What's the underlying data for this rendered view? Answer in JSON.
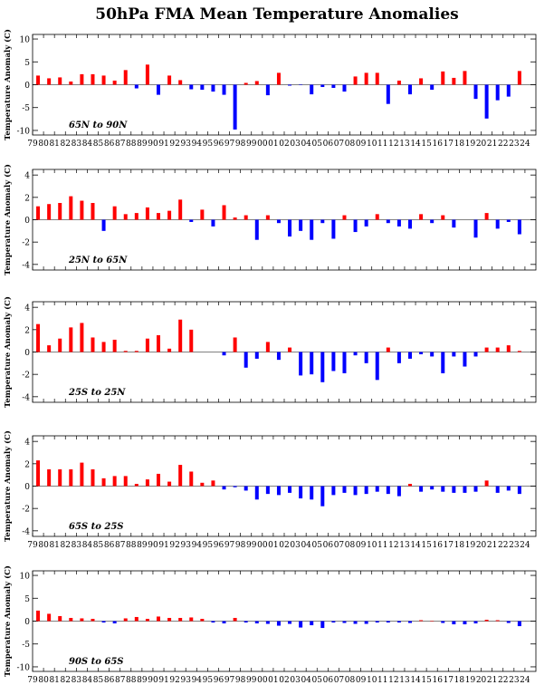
{
  "page": {
    "title": "50hPa FMA Mean Temperature Anomalies"
  },
  "colors": {
    "positive": "#ff0000",
    "negative": "#0000ff",
    "axis": "#000000"
  },
  "chart_data": [
    {
      "type": "bar",
      "region": "65N to 90N",
      "ylabel": "Temperature Anomaly (C)",
      "ylim": [
        -11,
        11
      ],
      "yticks": [
        -10,
        -5,
        0,
        5,
        10
      ],
      "categories": [
        "79",
        "80",
        "81",
        "82",
        "83",
        "84",
        "85",
        "86",
        "87",
        "88",
        "89",
        "90",
        "91",
        "92",
        "93",
        "94",
        "95",
        "96",
        "97",
        "98",
        "99",
        "00",
        "01",
        "02",
        "03",
        "04",
        "05",
        "06",
        "07",
        "08",
        "09",
        "10",
        "11",
        "12",
        "13",
        "14",
        "15",
        "16",
        "17",
        "18",
        "19",
        "20",
        "21",
        "22",
        "23",
        "24"
      ],
      "values": [
        2.0,
        1.4,
        1.6,
        0.7,
        2.3,
        2.3,
        2.0,
        0.9,
        3.2,
        -0.8,
        4.4,
        -2.2,
        2.0,
        1.0,
        -1.0,
        -1.1,
        -1.5,
        -2.2,
        -9.8,
        0.4,
        0.8,
        -2.3,
        2.6,
        -0.2,
        -0.1,
        -2.1,
        -0.5,
        -0.7,
        -1.5,
        1.8,
        2.6,
        2.6,
        -4.2,
        0.9,
        -2.1,
        1.4,
        -1.1,
        2.9,
        1.5,
        3.0,
        -3.1,
        -7.4,
        -3.4,
        -2.6,
        3.0,
        null
      ]
    },
    {
      "type": "bar",
      "region": "25N to 65N",
      "ylabel": "Temperature Anomaly (C)",
      "ylim": [
        -4.5,
        4.5
      ],
      "yticks": [
        -4,
        -2,
        0,
        2,
        4
      ],
      "categories": [
        "79",
        "80",
        "81",
        "82",
        "83",
        "84",
        "85",
        "86",
        "87",
        "88",
        "89",
        "90",
        "91",
        "92",
        "93",
        "94",
        "95",
        "96",
        "97",
        "98",
        "99",
        "00",
        "01",
        "02",
        "03",
        "04",
        "05",
        "06",
        "07",
        "08",
        "09",
        "10",
        "11",
        "12",
        "13",
        "14",
        "15",
        "16",
        "17",
        "18",
        "19",
        "20",
        "21",
        "22",
        "23",
        "24"
      ],
      "values": [
        1.2,
        1.4,
        1.5,
        2.1,
        1.7,
        1.5,
        -1.0,
        1.2,
        0.5,
        0.6,
        1.1,
        0.6,
        0.8,
        1.8,
        -0.2,
        0.9,
        -0.6,
        1.3,
        0.2,
        0.4,
        -1.8,
        0.4,
        -0.3,
        -1.5,
        -1.0,
        -1.8,
        -0.3,
        -1.7,
        0.4,
        -1.1,
        -0.6,
        0.5,
        -0.3,
        -0.6,
        -0.8,
        0.5,
        -0.3,
        0.4,
        -0.7,
        0.0,
        -1.6,
        0.6,
        -0.8,
        -0.2,
        -1.3,
        null
      ]
    },
    {
      "type": "bar",
      "region": "25S to 25N",
      "ylabel": "Temperature Anomaly (C)",
      "ylim": [
        -4.5,
        4.5
      ],
      "yticks": [
        -4,
        -2,
        0,
        2,
        4
      ],
      "categories": [
        "79",
        "80",
        "81",
        "82",
        "83",
        "84",
        "85",
        "86",
        "87",
        "88",
        "89",
        "90",
        "91",
        "92",
        "93",
        "94",
        "95",
        "96",
        "97",
        "98",
        "99",
        "00",
        "01",
        "02",
        "03",
        "04",
        "05",
        "06",
        "07",
        "08",
        "09",
        "10",
        "11",
        "12",
        "13",
        "14",
        "15",
        "16",
        "17",
        "18",
        "19",
        "20",
        "21",
        "22",
        "23",
        "24"
      ],
      "values": [
        2.5,
        0.6,
        1.2,
        2.2,
        2.6,
        1.3,
        0.9,
        1.1,
        0.1,
        0.1,
        1.2,
        1.5,
        0.3,
        2.9,
        2.0,
        null,
        null,
        -0.3,
        1.3,
        -1.4,
        -0.6,
        0.9,
        -0.7,
        0.4,
        -2.1,
        -2.0,
        -2.7,
        -1.7,
        -1.9,
        -0.3,
        -1.0,
        -2.5,
        0.4,
        -1.0,
        -0.6,
        -0.2,
        -0.4,
        -1.9,
        -0.4,
        -1.3,
        -0.4,
        0.4,
        0.4,
        0.6,
        0.1,
        null
      ]
    },
    {
      "type": "bar",
      "region": "65S to 25S",
      "ylabel": "Temperature Anomaly (C)",
      "ylim": [
        -4.5,
        4.5
      ],
      "yticks": [
        -4,
        -2,
        0,
        2,
        4
      ],
      "categories": [
        "79",
        "80",
        "81",
        "82",
        "83",
        "84",
        "85",
        "86",
        "87",
        "88",
        "89",
        "90",
        "91",
        "92",
        "93",
        "94",
        "95",
        "96",
        "97",
        "98",
        "99",
        "00",
        "01",
        "02",
        "03",
        "04",
        "05",
        "06",
        "07",
        "08",
        "09",
        "10",
        "11",
        "12",
        "13",
        "14",
        "15",
        "16",
        "17",
        "18",
        "19",
        "20",
        "21",
        "22",
        "23",
        "24"
      ],
      "values": [
        2.3,
        1.5,
        1.5,
        1.5,
        2.1,
        1.5,
        0.7,
        0.9,
        0.9,
        0.2,
        0.6,
        1.1,
        0.4,
        1.9,
        1.3,
        0.3,
        0.5,
        -0.3,
        -0.1,
        -0.4,
        -1.2,
        -0.7,
        -0.8,
        -0.6,
        -1.1,
        -1.2,
        -1.8,
        -0.8,
        -0.6,
        -0.8,
        -0.7,
        -0.5,
        -0.7,
        -0.9,
        0.2,
        -0.5,
        -0.3,
        -0.5,
        -0.6,
        -0.6,
        -0.5,
        0.5,
        -0.6,
        -0.4,
        -0.7,
        null
      ]
    },
    {
      "type": "bar",
      "region": "90S to 65S",
      "ylabel": "Temperature Anomaly (C)",
      "ylim": [
        -11,
        11
      ],
      "yticks": [
        -10,
        -5,
        0,
        5,
        10
      ],
      "categories": [
        "79",
        "80",
        "81",
        "82",
        "83",
        "84",
        "85",
        "86",
        "87",
        "88",
        "89",
        "90",
        "91",
        "92",
        "93",
        "94",
        "95",
        "96",
        "97",
        "98",
        "99",
        "00",
        "01",
        "02",
        "03",
        "04",
        "05",
        "06",
        "07",
        "08",
        "09",
        "10",
        "11",
        "12",
        "13",
        "14",
        "15",
        "16",
        "17",
        "18",
        "19",
        "20",
        "21",
        "22",
        "23",
        "24"
      ],
      "values": [
        2.3,
        1.6,
        1.1,
        0.7,
        0.6,
        0.5,
        -0.3,
        -0.5,
        0.6,
        0.9,
        0.5,
        1.0,
        0.7,
        0.7,
        0.8,
        0.5,
        -0.3,
        -0.5,
        0.7,
        -0.3,
        -0.5,
        -0.6,
        -1.0,
        -0.6,
        -1.4,
        -0.9,
        -1.5,
        -0.3,
        -0.4,
        -0.6,
        -0.6,
        -0.3,
        -0.3,
        -0.3,
        -0.4,
        0.2,
        0.1,
        -0.4,
        -0.7,
        -0.7,
        -0.5,
        0.3,
        0.2,
        -0.4,
        -1.1,
        null
      ]
    }
  ]
}
